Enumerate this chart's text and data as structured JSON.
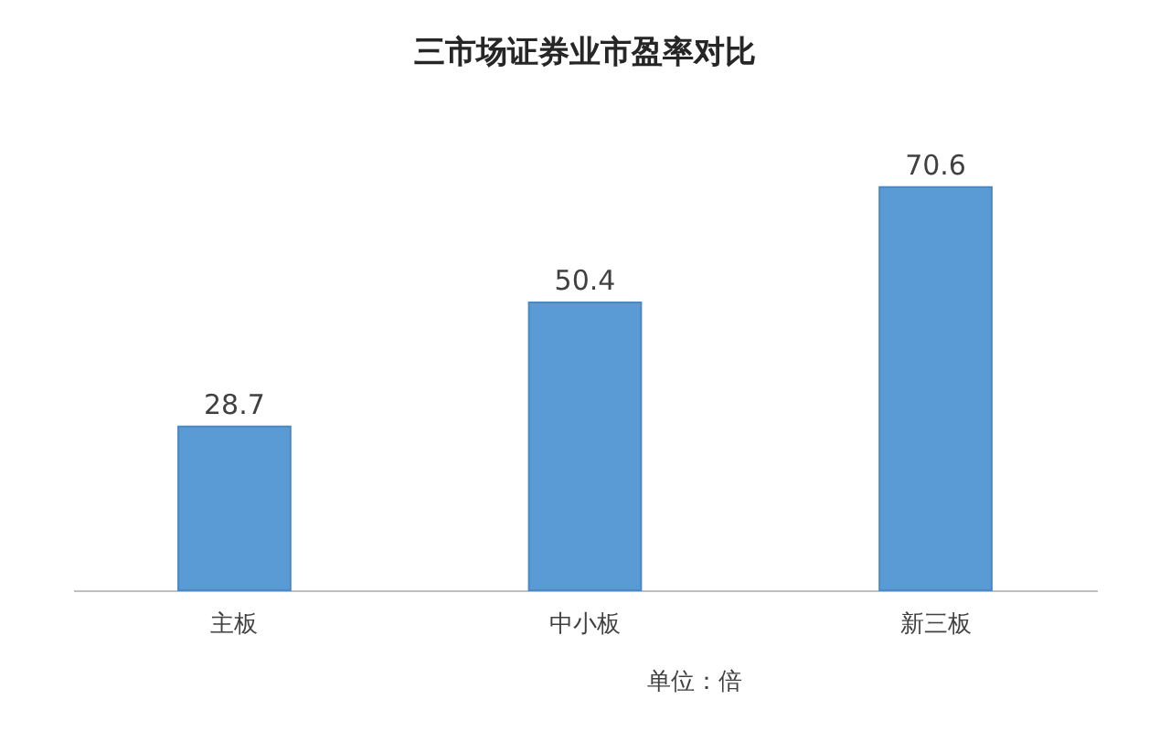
{
  "chart_data": {
    "type": "bar",
    "title": "三市场证券业市盈率对比",
    "categories": [
      "主板",
      "中小板",
      "新三板"
    ],
    "values": [
      28.7,
      50.4,
      70.6
    ],
    "color": "#5b9bd5",
    "data_labels": true,
    "annotations": [
      "单位：倍"
    ]
  }
}
